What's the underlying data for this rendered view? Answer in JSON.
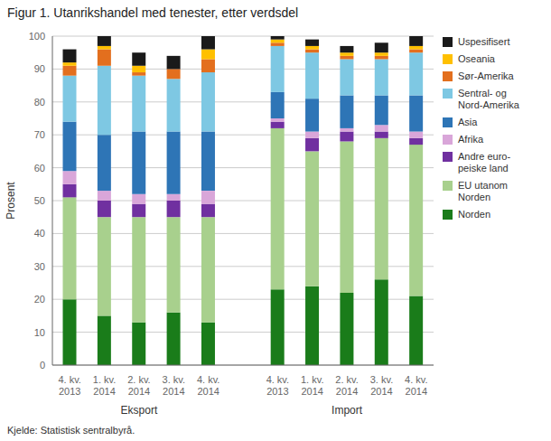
{
  "chart_data": {
    "type": "bar",
    "stacked": true,
    "title": "Figur 1. Utanrikshandel med tenester, etter verdsdel",
    "ylabel": "Prosent",
    "footnote": "Kjelde: Statistisk sentralbyrå.",
    "group_labels": [
      "Eksport",
      "Import"
    ],
    "categories": [
      "4. kv.\n2013",
      "1. kv.\n2014",
      "2. kv.\n2014",
      "3. kv.\n2014",
      "4. kv.\n2014",
      "4. kv.\n2013",
      "1. kv.\n2014",
      "2. kv.\n2014",
      "3. kv.\n2014",
      "4. kv.\n2014"
    ],
    "series": [
      {
        "name": "Norden",
        "color": "#1a7c1a",
        "values": [
          20,
          15,
          13,
          16,
          13,
          23,
          24,
          22,
          26,
          21
        ]
      },
      {
        "name": "EU utanom\nNorden",
        "color": "#a8d08d",
        "values": [
          31,
          30,
          32,
          29,
          32,
          49,
          41,
          46,
          43,
          46
        ]
      },
      {
        "name": "Andre euro-\npeiske land",
        "color": "#7030a0",
        "values": [
          4,
          5,
          4,
          5,
          4,
          2,
          4,
          3,
          2,
          2
        ]
      },
      {
        "name": "Afrika",
        "color": "#d9a6d9",
        "values": [
          4,
          3,
          3,
          2,
          4,
          1,
          2,
          1,
          2,
          2
        ]
      },
      {
        "name": "Asia",
        "color": "#2e75b6",
        "values": [
          15,
          17,
          19,
          19,
          18,
          8,
          10,
          10,
          9,
          11
        ]
      },
      {
        "name": "Sentral- og\nNord-Amerika",
        "color": "#7ec8e3",
        "values": [
          14,
          21,
          17,
          16,
          18,
          14,
          14,
          11,
          11,
          13
        ]
      },
      {
        "name": "Sør-Amerika",
        "color": "#e36f1e",
        "values": [
          3,
          5,
          1,
          3,
          4,
          1,
          1,
          1,
          1,
          1
        ]
      },
      {
        "name": "Oseania",
        "color": "#ffc000",
        "values": [
          1,
          1,
          2,
          0,
          3,
          1,
          1,
          1,
          1,
          1
        ]
      },
      {
        "name": "Uspesifisert",
        "color": "#1a1a1a",
        "values": [
          4,
          3,
          4,
          4,
          4,
          1,
          2,
          2,
          3,
          3
        ]
      }
    ],
    "ylim": [
      0,
      100
    ],
    "yticks": [
      0,
      10,
      20,
      30,
      40,
      50,
      60,
      70,
      80,
      90,
      100
    ],
    "grid": true,
    "legend": "right"
  }
}
